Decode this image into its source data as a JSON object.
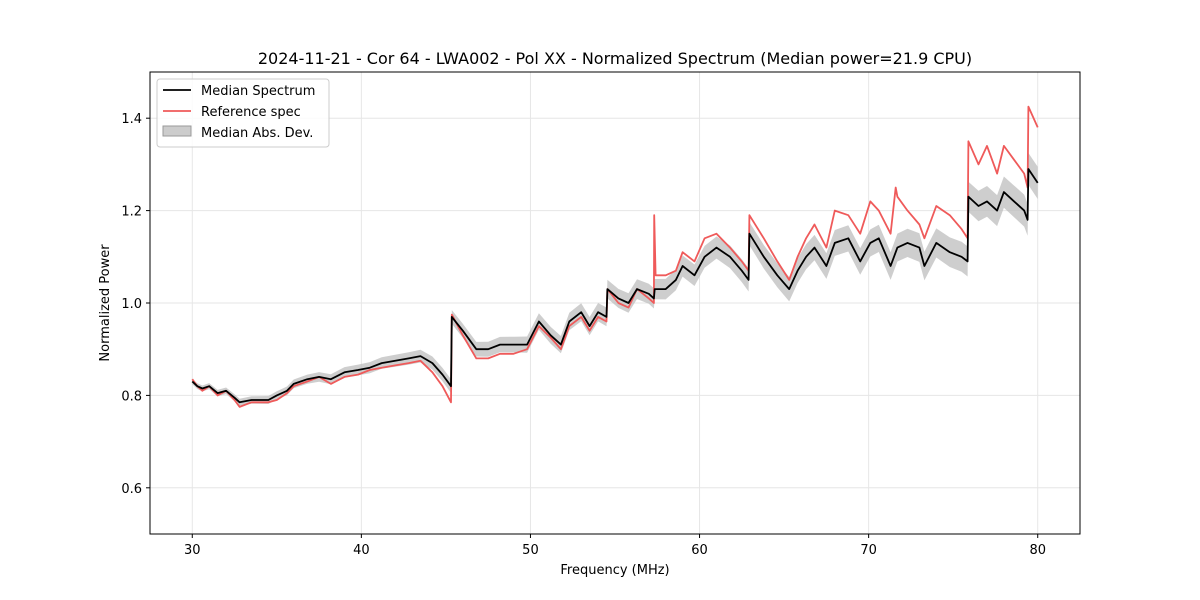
{
  "chart_data": {
    "type": "line",
    "title": "2024-11-21 - Cor 64 - LWA002 - Pol XX - Normalized Spectrum (Median power=21.9 CPU)",
    "xlabel": "Frequency (MHz)",
    "ylabel": "Normalized Power",
    "xlim": [
      27.5,
      82.5
    ],
    "ylim": [
      0.5,
      1.5
    ],
    "xticks": [
      30,
      40,
      50,
      60,
      70,
      80
    ],
    "yticks": [
      0.6,
      0.8,
      1.0,
      1.2,
      1.4
    ],
    "ytick_labels": [
      "0.6",
      "0.8",
      "1.0",
      "1.2",
      "1.4"
    ],
    "grid": true,
    "legend_position": "top-left",
    "legend": [
      {
        "label": "Median Spectrum",
        "kind": "line",
        "color": "#000000"
      },
      {
        "label": "Reference spec",
        "kind": "line",
        "color": "#ef5a5a"
      },
      {
        "label": "Median Abs. Dev.",
        "kind": "band",
        "color": "#bdbdbd"
      }
    ],
    "series": [
      {
        "name": "Median Spectrum",
        "color": "#000000",
        "x": [
          30.0,
          30.3,
          30.6,
          31.0,
          31.5,
          32.0,
          32.5,
          32.8,
          33.5,
          34.5,
          35.0,
          35.6,
          36.0,
          36.8,
          37.5,
          38.2,
          39.0,
          39.8,
          40.5,
          41.2,
          42.0,
          42.8,
          43.5,
          44.2,
          44.8,
          45.3,
          45.35,
          46.0,
          46.8,
          47.5,
          48.2,
          49.0,
          49.8,
          50.5,
          51.2,
          51.8,
          52.3,
          53.0,
          53.5,
          54.0,
          54.5,
          54.55,
          55.2,
          55.8,
          56.3,
          57.0,
          57.3,
          57.35,
          58.0,
          58.6,
          59.0,
          59.7,
          60.3,
          61.0,
          61.8,
          62.5,
          62.9,
          62.95,
          63.8,
          64.6,
          65.3,
          65.8,
          66.3,
          66.8,
          67.5,
          68.0,
          68.8,
          69.5,
          70.1,
          70.6,
          71.3,
          71.7,
          72.3,
          73.0,
          73.3,
          74.0,
          74.8,
          75.5,
          75.85,
          75.9,
          76.5,
          77.0,
          77.6,
          78.0,
          78.6,
          79.2,
          79.4,
          79.45,
          80.0
        ],
        "values": [
          0.83,
          0.82,
          0.815,
          0.82,
          0.805,
          0.81,
          0.795,
          0.785,
          0.79,
          0.79,
          0.8,
          0.81,
          0.825,
          0.835,
          0.84,
          0.835,
          0.85,
          0.855,
          0.86,
          0.87,
          0.875,
          0.88,
          0.885,
          0.87,
          0.845,
          0.82,
          0.97,
          0.94,
          0.9,
          0.9,
          0.91,
          0.91,
          0.91,
          0.96,
          0.93,
          0.91,
          0.96,
          0.98,
          0.95,
          0.98,
          0.97,
          1.03,
          1.01,
          1.0,
          1.03,
          1.02,
          1.01,
          1.03,
          1.03,
          1.05,
          1.08,
          1.06,
          1.1,
          1.12,
          1.1,
          1.07,
          1.05,
          1.15,
          1.1,
          1.06,
          1.03,
          1.07,
          1.1,
          1.12,
          1.08,
          1.13,
          1.14,
          1.09,
          1.13,
          1.14,
          1.08,
          1.12,
          1.13,
          1.12,
          1.08,
          1.13,
          1.11,
          1.1,
          1.09,
          1.23,
          1.21,
          1.22,
          1.2,
          1.24,
          1.22,
          1.2,
          1.18,
          1.29,
          1.26
        ]
      },
      {
        "name": "Reference spec",
        "color": "#ef5a5a",
        "x": [
          30.0,
          30.3,
          30.6,
          31.0,
          31.5,
          32.0,
          32.5,
          32.8,
          33.5,
          34.5,
          35.0,
          35.6,
          36.0,
          36.8,
          37.5,
          38.2,
          39.0,
          39.8,
          40.5,
          41.2,
          42.0,
          42.8,
          43.5,
          44.2,
          44.8,
          45.3,
          45.35,
          46.0,
          46.8,
          47.5,
          48.2,
          49.0,
          49.8,
          50.5,
          51.2,
          51.8,
          52.3,
          53.0,
          53.5,
          54.0,
          54.5,
          54.55,
          55.2,
          55.8,
          56.3,
          57.0,
          57.3,
          57.32,
          57.4,
          58.0,
          58.6,
          59.0,
          59.7,
          60.3,
          61.0,
          61.8,
          62.5,
          62.9,
          62.95,
          63.8,
          64.6,
          65.3,
          65.8,
          66.3,
          66.8,
          67.5,
          68.0,
          68.8,
          69.5,
          70.1,
          70.6,
          71.3,
          71.6,
          71.7,
          72.3,
          73.0,
          73.3,
          74.0,
          74.8,
          75.5,
          75.85,
          75.9,
          76.5,
          77.0,
          77.6,
          78.0,
          78.6,
          79.2,
          79.4,
          79.45,
          80.0
        ],
        "values": [
          0.835,
          0.82,
          0.81,
          0.82,
          0.8,
          0.81,
          0.79,
          0.775,
          0.785,
          0.785,
          0.79,
          0.805,
          0.82,
          0.83,
          0.84,
          0.825,
          0.84,
          0.845,
          0.855,
          0.86,
          0.865,
          0.87,
          0.875,
          0.85,
          0.82,
          0.785,
          0.975,
          0.93,
          0.88,
          0.88,
          0.89,
          0.89,
          0.9,
          0.95,
          0.925,
          0.9,
          0.95,
          0.97,
          0.94,
          0.97,
          0.96,
          1.03,
          1.0,
          0.99,
          1.03,
          1.01,
          1.0,
          1.19,
          1.06,
          1.06,
          1.07,
          1.11,
          1.09,
          1.14,
          1.15,
          1.12,
          1.09,
          1.07,
          1.19,
          1.14,
          1.09,
          1.05,
          1.1,
          1.14,
          1.17,
          1.12,
          1.2,
          1.19,
          1.15,
          1.22,
          1.2,
          1.15,
          1.25,
          1.23,
          1.2,
          1.17,
          1.14,
          1.21,
          1.19,
          1.16,
          1.14,
          1.35,
          1.3,
          1.34,
          1.28,
          1.34,
          1.31,
          1.28,
          1.25,
          1.425,
          1.38
        ]
      }
    ],
    "band": {
      "name": "Median Abs. Dev.",
      "color": "#bdbdbd",
      "half_width_start": 0.006,
      "half_width_end": 0.035
    }
  }
}
